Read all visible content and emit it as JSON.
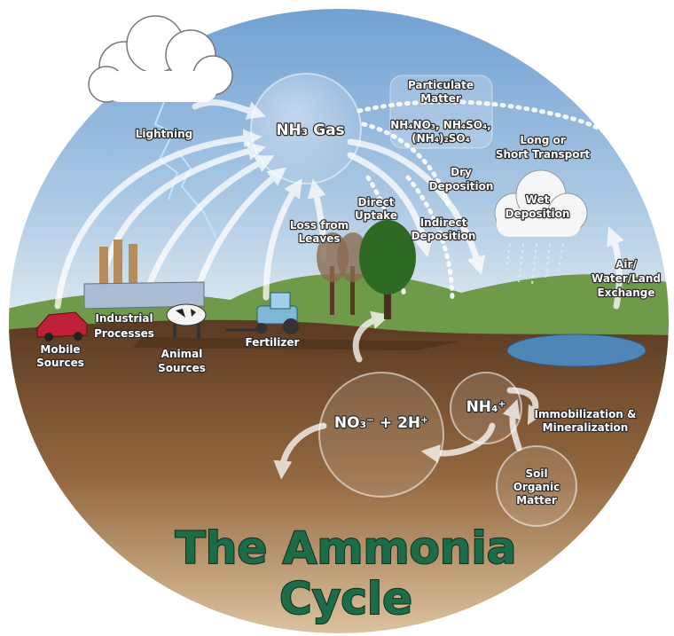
{
  "diagram": {
    "title": [
      "The Ammonia",
      "Cycle"
    ],
    "labels": {
      "lightning": "Lightning",
      "nh3_gas": "NH₃ Gas",
      "particulate_matter": [
        "Particulate",
        "Matter"
      ],
      "particulate_formulas": [
        "NH₄NO₃, NH₄SO₄,",
        "(NH₄)₂SO₄"
      ],
      "transport": [
        "Long or",
        "Short Transport"
      ],
      "dry_deposition": [
        "Dry",
        "Deposition"
      ],
      "wet_deposition": [
        "Wet",
        "Deposition"
      ],
      "direct_uptake": [
        "Direct",
        "Uptake"
      ],
      "loss_from_leaves": [
        "Loss from",
        "Leaves"
      ],
      "indirect_deposition": [
        "Indirect",
        "Deposition"
      ],
      "exchange": [
        "Air/",
        "Water/Land",
        "Exchange"
      ],
      "industrial": [
        "Industrial",
        "Processes"
      ],
      "mobile": [
        "Mobile",
        "Sources"
      ],
      "animal": [
        "Animal",
        "Sources"
      ],
      "fertilizer": "Fertilizer",
      "nitrate": "NO₃⁻ + 2H⁺",
      "ammonium": "NH₄⁺",
      "immobilization": [
        "Immobilization &",
        "Mineralization"
      ],
      "soil_organic": [
        "Soil",
        "Organic",
        "Matter"
      ]
    }
  }
}
